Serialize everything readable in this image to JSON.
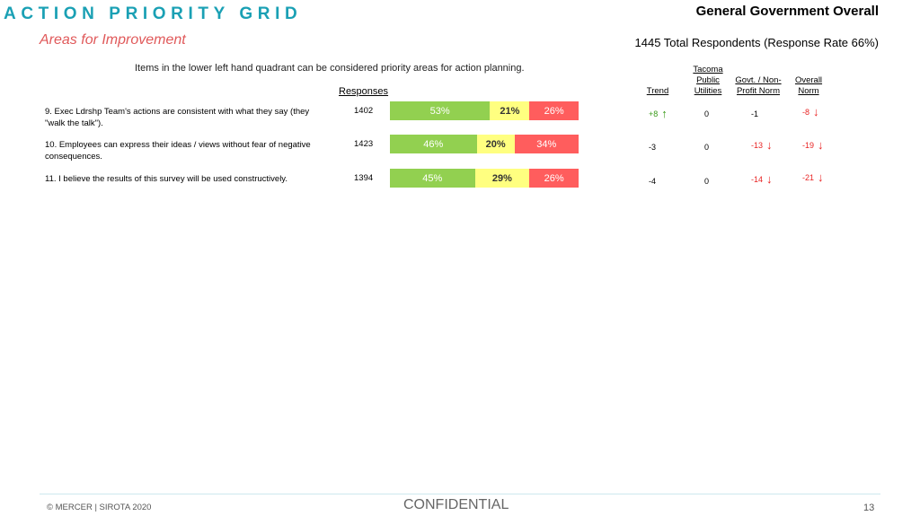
{
  "header": {
    "title": "ACTION PRIORITY GRID",
    "subtitle": "Areas for Improvement",
    "organization": "General Government Overall",
    "respondents": "1445 Total Respondents (Response Rate  66%)"
  },
  "instruction": "Items in the lower left hand quadrant can be considered priority areas for action planning.",
  "columns": {
    "responses": "Responses",
    "trend": "Trend",
    "tacoma_line1": "Tacoma",
    "tacoma_line2": "Public",
    "tacoma_line3": "Utilities",
    "govt_line1": "Govt. / Non-",
    "govt_line2": "Profit Norm",
    "overall_line1": "Overall",
    "overall_line2": "Norm"
  },
  "colors": {
    "favorable": "#92d050",
    "neutral": "#ffff80",
    "unfavorable": "#ff5d5d",
    "title": "#1aa0b4",
    "subtitle": "#e0595a",
    "up_arrow": "#3a9a1a",
    "down_arrow": "#e82424"
  },
  "rows": [
    {
      "question": "9. Exec Ldrshp Team's actions are consistent with what they say (they \"walk the talk\").",
      "responses": "1402",
      "favorable": 53,
      "neutral": 21,
      "unfavorable": 26,
      "favorable_label": "53%",
      "neutral_label": "21%",
      "unfavorable_label": "26%",
      "trend": "+8",
      "trend_dir": "up",
      "tpu": "0",
      "tpu_dir": "none",
      "govt": "-1",
      "govt_dir": "none",
      "overall": "-8",
      "overall_dir": "down"
    },
    {
      "question": "10. Employees can express their ideas / views without fear of negative consequences.",
      "responses": "1423",
      "favorable": 46,
      "neutral": 20,
      "unfavorable": 34,
      "favorable_label": "46%",
      "neutral_label": "20%",
      "unfavorable_label": "34%",
      "trend": "-3",
      "trend_dir": "none",
      "tpu": "0",
      "tpu_dir": "none",
      "govt": "-13",
      "govt_dir": "down",
      "overall": "-19",
      "overall_dir": "down"
    },
    {
      "question": "11. I believe the results of this survey will be used constructively.",
      "responses": "1394",
      "favorable": 45,
      "neutral": 29,
      "unfavorable": 26,
      "favorable_label": "45%",
      "neutral_label": "29%",
      "unfavorable_label": "26%",
      "trend": "-4",
      "trend_dir": "none",
      "tpu": "0",
      "tpu_dir": "none",
      "govt": "-14",
      "govt_dir": "down",
      "overall": "-21",
      "overall_dir": "down"
    }
  ],
  "footer": {
    "copyright": "© MERCER | SIROTA 2020",
    "confidential": "CONFIDENTIAL",
    "page": "13"
  }
}
